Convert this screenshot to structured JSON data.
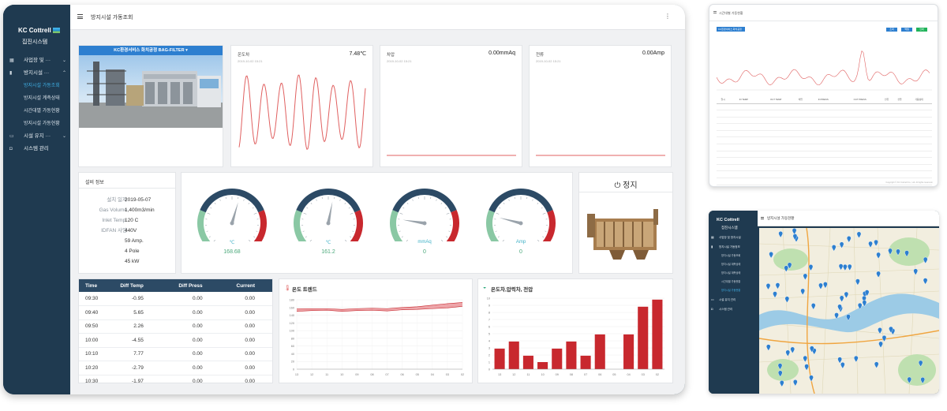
{
  "brand": {
    "logo_text": "KC Cottrell",
    "system_name": "집진시스템"
  },
  "sidebar": {
    "items": [
      {
        "label": "사업장 및 ···",
        "icon": "grid-icon",
        "expanded": false
      },
      {
        "label": "방지시설 ···",
        "icon": "bar-chart-icon",
        "expanded": true,
        "children": [
          "방지시설 가동조회",
          "방지시설 계측상태",
          "시간대별 가동현황",
          "방지시설 가동현황"
        ]
      },
      {
        "label": "시설 유지 ···",
        "icon": "monitor-icon",
        "expanded": false
      },
      {
        "label": "시스템 관리",
        "icon": "camera-icon",
        "expanded": false
      }
    ],
    "active_child": "방지시설 가동조회"
  },
  "header": {
    "title": "방지시설 가동조회"
  },
  "facility": {
    "name": "KC환경서비스 화치공정 BAG-FILTER"
  },
  "trends": [
    {
      "title": "온도차",
      "value": "7.48℃",
      "timestamp": "2019-10-02 15:21"
    },
    {
      "title": "차압",
      "value": "0.00mmAq",
      "timestamp": "2019-10-02 15:21"
    },
    {
      "title": "전류",
      "value": "0.00Amp",
      "timestamp": "2019-10-02 15:21"
    }
  ],
  "spec": {
    "title": "설비 정보",
    "rows": [
      {
        "label": "설치 일자",
        "value": "2019-05-07"
      },
      {
        "label": "Gas Volume",
        "value": "1,400m3/min"
      },
      {
        "label": "Inlet Temp.",
        "value": "120 C"
      },
      {
        "label": "IDFAN 사양",
        "value": "440V"
      },
      {
        "label": "",
        "value": "59 Amp."
      },
      {
        "label": "",
        "value": "4 Pole"
      },
      {
        "label": "",
        "value": "45 kW"
      }
    ]
  },
  "gauges": [
    {
      "unit": "℃",
      "value": "168.68",
      "fraction": 0.56
    },
    {
      "unit": "℃",
      "value": "161.2",
      "fraction": 0.54
    },
    {
      "unit": "mmAq",
      "value": "0",
      "fraction": 0.2
    },
    {
      "unit": "Amp",
      "value": "0",
      "fraction": 0.22
    }
  ],
  "status": {
    "label": "정지"
  },
  "table": {
    "columns": [
      "Time",
      "Diff Temp",
      "Diff Press",
      "Current"
    ],
    "rows": [
      [
        "09:30",
        "-0.95",
        "0.00",
        "0.00"
      ],
      [
        "09:40",
        "5.65",
        "0.00",
        "0.00"
      ],
      [
        "09:50",
        "2.26",
        "0.00",
        "0.00"
      ],
      [
        "10:00",
        "-4.55",
        "0.00",
        "0.00"
      ],
      [
        "10:10",
        "7.77",
        "0.00",
        "0.00"
      ],
      [
        "10:20",
        "-2.79",
        "0.00",
        "0.00"
      ],
      [
        "10:30",
        "-1.97",
        "0.00",
        "0.00"
      ]
    ]
  },
  "chart_data": [
    {
      "type": "area",
      "title": "온도 트렌드",
      "categories": [
        "13",
        "12",
        "11",
        "10",
        "09",
        "08",
        "07",
        "06",
        "05",
        "04",
        "03",
        "02"
      ],
      "series": [
        {
          "values": [
            150,
            152,
            153,
            150,
            152,
            153,
            151,
            154,
            155,
            157,
            159,
            163
          ]
        },
        {
          "values": [
            156,
            157,
            157,
            155,
            157,
            158,
            157,
            160,
            162,
            166,
            170,
            173
          ]
        }
      ],
      "ylim": [
        0,
        180
      ],
      "yticks": [
        0,
        20,
        40,
        60,
        80,
        100,
        120,
        140,
        160,
        180
      ]
    },
    {
      "type": "bar",
      "title": "온도차,압력차, 전압",
      "categories": [
        "13",
        "12",
        "11",
        "10",
        "09",
        "08",
        "07",
        "06",
        "05",
        "04",
        "03",
        "02"
      ],
      "values": [
        2.9,
        3.9,
        1.9,
        1.0,
        2.9,
        3.9,
        1.9,
        4.9,
        0,
        4.9,
        8.8,
        9.8
      ],
      "ylim": [
        0,
        10
      ],
      "yticks": [
        0,
        1,
        2,
        3,
        4,
        5,
        6,
        7,
        8,
        9,
        10
      ]
    }
  ],
  "tablet_top": {
    "title": "시간대별 가동현황",
    "select_label": "KC환경서비스 화치공정",
    "buttons": [
      {
        "label": "조회",
        "color": "#2d7fd0"
      },
      {
        "label": "엑셀",
        "color": "#2d7fd0"
      },
      {
        "label": "인쇄",
        "color": "#20b35a"
      }
    ],
    "columns": [
      "일시",
      "IN TEMP",
      "OUT TEMP",
      "차압",
      "IN PRESS",
      "OUT PRESS",
      "전류",
      "전압",
      "가동상태"
    ],
    "footer": "Copyright © KC Cottrell Co., Ltd. All rights reserved."
  },
  "tablet_bottom": {
    "title": "방지시설 가동현황",
    "nav": [
      {
        "label": "사업장 및 방지시설",
        "icon": "grid-icon"
      },
      {
        "label": "방지시설 가동정보",
        "icon": "bar-chart-icon"
      }
    ],
    "subs": [
      "방지시설 가동조회",
      "방지시설 계측상태",
      "방지시설 계측상태",
      "시간대별 가동현황",
      "방지시설 가동현황"
    ],
    "active_sub": "방지시설 가동현황",
    "nav2": [
      {
        "label": "시설 유지 관리",
        "icon": "monitor-icon"
      },
      {
        "label": "시스템 관리",
        "icon": "camera-icon"
      }
    ]
  },
  "colors": {
    "sidebar": "#1f3a50",
    "accent": "#2d7fd0",
    "trend_line": "#e06060",
    "bar": "#c8282e"
  }
}
